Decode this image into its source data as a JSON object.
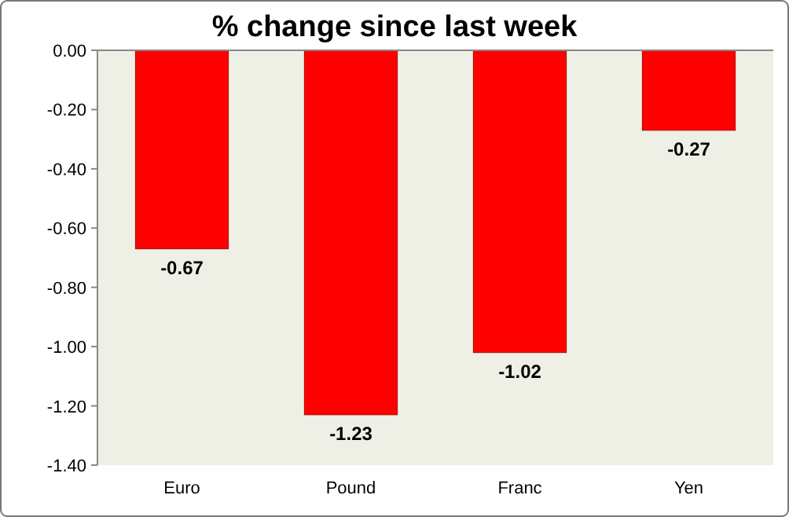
{
  "chart_data": {
    "type": "bar",
    "title": "% change since last week",
    "categories": [
      "Euro",
      "Pound",
      "Franc",
      "Yen"
    ],
    "values": [
      -0.67,
      -1.23,
      -1.02,
      -0.27
    ],
    "color": "#ff0000",
    "ylim": [
      -1.4,
      0
    ],
    "yticks": [
      {
        "value": 0,
        "label": "0.00"
      },
      {
        "value": -0.2,
        "label": "-0.20"
      },
      {
        "value": -0.4,
        "label": "-0.40"
      },
      {
        "value": -0.6,
        "label": "-0.60"
      },
      {
        "value": -0.8,
        "label": "-0.80"
      },
      {
        "value": -1,
        "label": "-1.00"
      },
      {
        "value": -1.2,
        "label": "-1.20"
      },
      {
        "value": -1.4,
        "label": "-1.40"
      }
    ],
    "data_labels": true
  }
}
